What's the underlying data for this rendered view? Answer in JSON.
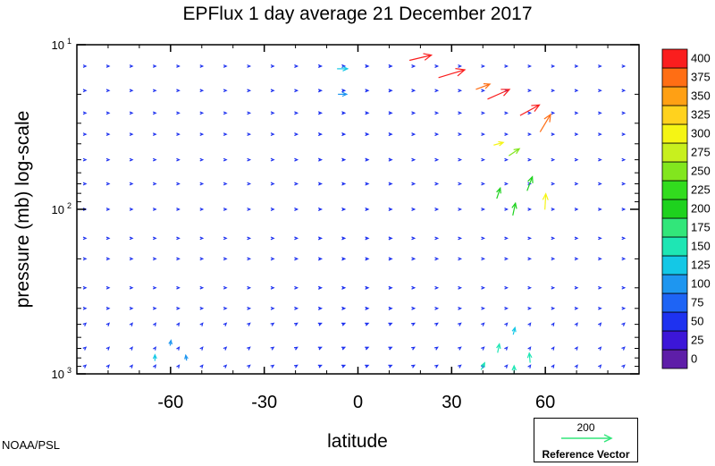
{
  "chart_data": {
    "type": "quiver",
    "title": "EPFlux  1 day average  21 December 2017",
    "xlabel": "latitude",
    "ylabel": "pressure (mb)  log-scale",
    "x_range": [
      -90,
      90
    ],
    "y_range": [
      1000,
      10
    ],
    "y_scale": "log",
    "x_ticks": [
      -60,
      -30,
      0,
      30,
      60
    ],
    "y_ticks": [
      {
        "value": 10,
        "base": "10",
        "exp": "1"
      },
      {
        "value": 100,
        "base": "10",
        "exp": "2"
      },
      {
        "value": 1000,
        "base": "10",
        "exp": "3"
      }
    ],
    "grid": false,
    "colorbar": {
      "placement": "right",
      "levels": [
        0,
        25,
        50,
        75,
        100,
        125,
        150,
        175,
        200,
        225,
        250,
        275,
        300,
        325,
        350,
        375,
        400
      ],
      "labels": [
        "0",
        "25",
        "50",
        "75",
        "100",
        "125",
        "150",
        "175",
        "200",
        "225",
        "250",
        "275",
        "300",
        "325",
        "350",
        "375",
        "400"
      ],
      "colors": [
        "#5e1ea8",
        "#3c16d8",
        "#1e32f0",
        "#1e64f5",
        "#1e96f0",
        "#14c8e6",
        "#1ee6b4",
        "#32e67a",
        "#1ed21e",
        "#32dc1e",
        "#82e61e",
        "#c8f01e",
        "#f5f514",
        "#ffd21e",
        "#ffa014",
        "#ff6e14",
        "#fa1e1e"
      ]
    },
    "vectors_note": "Arrows: x = latitude (deg), p = pressure (mb), u/v = flux components scaled to Reference Vector 200, color by magnitude",
    "key_vectors": [
      {
        "x": 20,
        "p": 12,
        "u": 250,
        "v": -60,
        "mag": 400
      },
      {
        "x": 30,
        "p": 15,
        "u": 300,
        "v": -90,
        "mag": 400
      },
      {
        "x": 45,
        "p": 20,
        "u": 250,
        "v": -110,
        "mag": 400
      },
      {
        "x": 55,
        "p": 25,
        "u": 220,
        "v": -120,
        "mag": 400
      },
      {
        "x": 60,
        "p": 30,
        "u": 120,
        "v": -200,
        "mag": 380
      },
      {
        "x": 40,
        "p": 18,
        "u": 160,
        "v": -60,
        "mag": 380
      },
      {
        "x": -5,
        "p": 14,
        "u": 120,
        "v": 0,
        "mag": 140
      },
      {
        "x": -5,
        "p": 20,
        "u": 100,
        "v": 0,
        "mag": 110
      },
      {
        "x": 45,
        "p": 40,
        "u": 110,
        "v": -30,
        "mag": 300
      },
      {
        "x": 50,
        "p": 45,
        "u": 120,
        "v": -80,
        "mag": 260
      },
      {
        "x": 55,
        "p": 70,
        "u": 60,
        "v": -160,
        "mag": 220
      },
      {
        "x": 60,
        "p": 90,
        "u": 10,
        "v": -180,
        "mag": 300
      },
      {
        "x": 50,
        "p": 100,
        "u": 30,
        "v": -140,
        "mag": 200
      },
      {
        "x": 45,
        "p": 80,
        "u": 40,
        "v": -120,
        "mag": 220
      },
      {
        "x": 50,
        "p": 550,
        "u": 20,
        "v": -80,
        "mag": 140
      },
      {
        "x": 45,
        "p": 700,
        "u": 20,
        "v": -100,
        "mag": 170
      },
      {
        "x": 55,
        "p": 800,
        "u": -10,
        "v": -110,
        "mag": 160
      },
      {
        "x": 40,
        "p": 900,
        "u": 40,
        "v": -80,
        "mag": 170
      },
      {
        "x": 50,
        "p": 950,
        "u": 0,
        "v": -100,
        "mag": 160
      },
      {
        "x": -65,
        "p": 800,
        "u": 0,
        "v": -70,
        "mag": 130
      },
      {
        "x": -60,
        "p": 650,
        "u": 10,
        "v": -60,
        "mag": 110
      },
      {
        "x": -55,
        "p": 800,
        "u": -10,
        "v": -60,
        "mag": 120
      }
    ]
  },
  "footer": {
    "credit": "NOAA/PSL",
    "ref_value": "200",
    "ref_label": "Reference Vector",
    "ref_color": "#32e67a"
  }
}
